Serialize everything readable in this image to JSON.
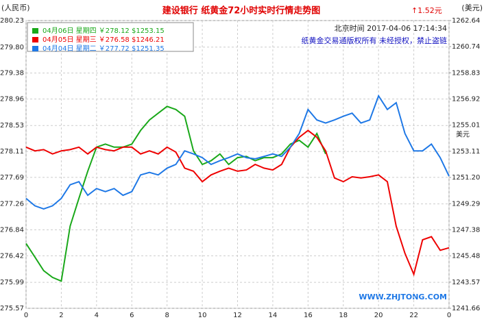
{
  "chart_data": {
    "type": "line",
    "title": "建设银行  纸黄金72小时实时行情走势图",
    "change": "↑1.52元",
    "y_label": "(人民币)",
    "y2_label": "(美元)",
    "y2_unit": "美元",
    "timestamp": "北京时间 2017-04-06 17:14:34",
    "copyright": "纸黄金交易通版权所有 未经授权，禁止盗链",
    "website": "WWW.ZHJTONG.COM",
    "x": [
      0,
      0.5,
      1,
      1.5,
      2,
      2.5,
      3,
      3.5,
      4,
      4.5,
      5,
      5.5,
      6,
      6.5,
      7,
      7.5,
      8,
      8.5,
      9,
      9.5,
      10,
      10.5,
      11,
      11.5,
      12,
      12.5,
      13,
      13.5,
      14,
      14.5,
      15,
      15.5,
      16,
      16.5,
      17,
      17.5,
      18,
      18.5,
      19,
      19.5,
      20,
      20.5,
      21,
      21.5,
      22,
      22.5,
      23,
      23.5,
      24
    ],
    "xlim": [
      0,
      24
    ],
    "xticks": [
      0,
      2,
      4,
      6,
      8,
      10,
      12,
      14,
      16,
      18,
      20,
      22,
      {
        "value": 24,
        "label": "0"
      }
    ],
    "ylim": [
      275.57,
      280.23
    ],
    "yticks": [
      275.57,
      275.99,
      276.42,
      276.84,
      277.26,
      277.69,
      278.11,
      278.53,
      278.96,
      279.38,
      {
        "value": 279.8,
        "label": "279.80"
      },
      280.23
    ],
    "y2lim": [
      1241.66,
      1262.64
    ],
    "y2ticks": [
      1241.66,
      1243.57,
      1245.48,
      1247.38,
      1249.29,
      {
        "value": 1251.2,
        "label": "1251.20"
      },
      1253.11,
      1255.01,
      1256.92,
      1258.83,
      1260.74,
      1262.64
    ],
    "grid": true,
    "series": [
      {
        "name": "04月06日 星期四 ￥278.12 $1253.15",
        "color": "#19a819",
        "values": [
          276.62,
          276.4,
          276.18,
          276.07,
          276.01,
          276.9,
          277.35,
          277.79,
          278.18,
          278.23,
          278.18,
          278.18,
          278.23,
          278.45,
          278.62,
          278.73,
          278.84,
          278.79,
          278.68,
          278.12,
          277.9,
          277.96,
          278.07,
          277.9,
          278.01,
          278.03,
          277.96,
          278.01,
          278.01,
          278.07,
          278.23,
          278.29,
          278.18,
          278.4,
          278.07,
          null,
          null,
          null,
          null,
          null,
          null,
          null,
          null,
          null,
          null,
          null,
          null,
          null,
          null
        ]
      },
      {
        "name": "04月05日 星期三 ￥276.58 $1246.21",
        "color": "#ee0000",
        "values": [
          278.18,
          278.12,
          278.14,
          278.07,
          278.12,
          278.14,
          278.18,
          278.07,
          278.18,
          278.14,
          278.12,
          278.18,
          278.18,
          278.07,
          278.12,
          278.07,
          278.18,
          278.1,
          277.84,
          277.79,
          277.62,
          277.73,
          277.79,
          277.84,
          277.79,
          277.81,
          277.9,
          277.84,
          277.81,
          277.9,
          278.18,
          278.34,
          278.45,
          278.34,
          278.12,
          277.68,
          277.62,
          277.7,
          277.68,
          277.7,
          277.73,
          277.62,
          276.9,
          276.46,
          276.12,
          276.68,
          276.73,
          276.51,
          276.55
        ]
      },
      {
        "name": "04月04日 星期二 ￥277.72 $1251.35",
        "color": "#1e78e6",
        "values": [
          277.35,
          277.23,
          277.18,
          277.23,
          277.35,
          277.57,
          277.62,
          277.4,
          277.51,
          277.46,
          277.51,
          277.4,
          277.46,
          277.73,
          277.77,
          277.73,
          277.84,
          277.9,
          278.12,
          278.07,
          278.01,
          277.9,
          277.96,
          278.01,
          278.07,
          278.01,
          277.99,
          278.03,
          278.07,
          278.03,
          278.18,
          278.4,
          278.79,
          278.62,
          278.57,
          278.62,
          278.68,
          278.73,
          278.57,
          278.62,
          279.01,
          278.79,
          278.9,
          278.4,
          278.12,
          278.12,
          278.23,
          278.01,
          277.71
        ]
      }
    ]
  }
}
